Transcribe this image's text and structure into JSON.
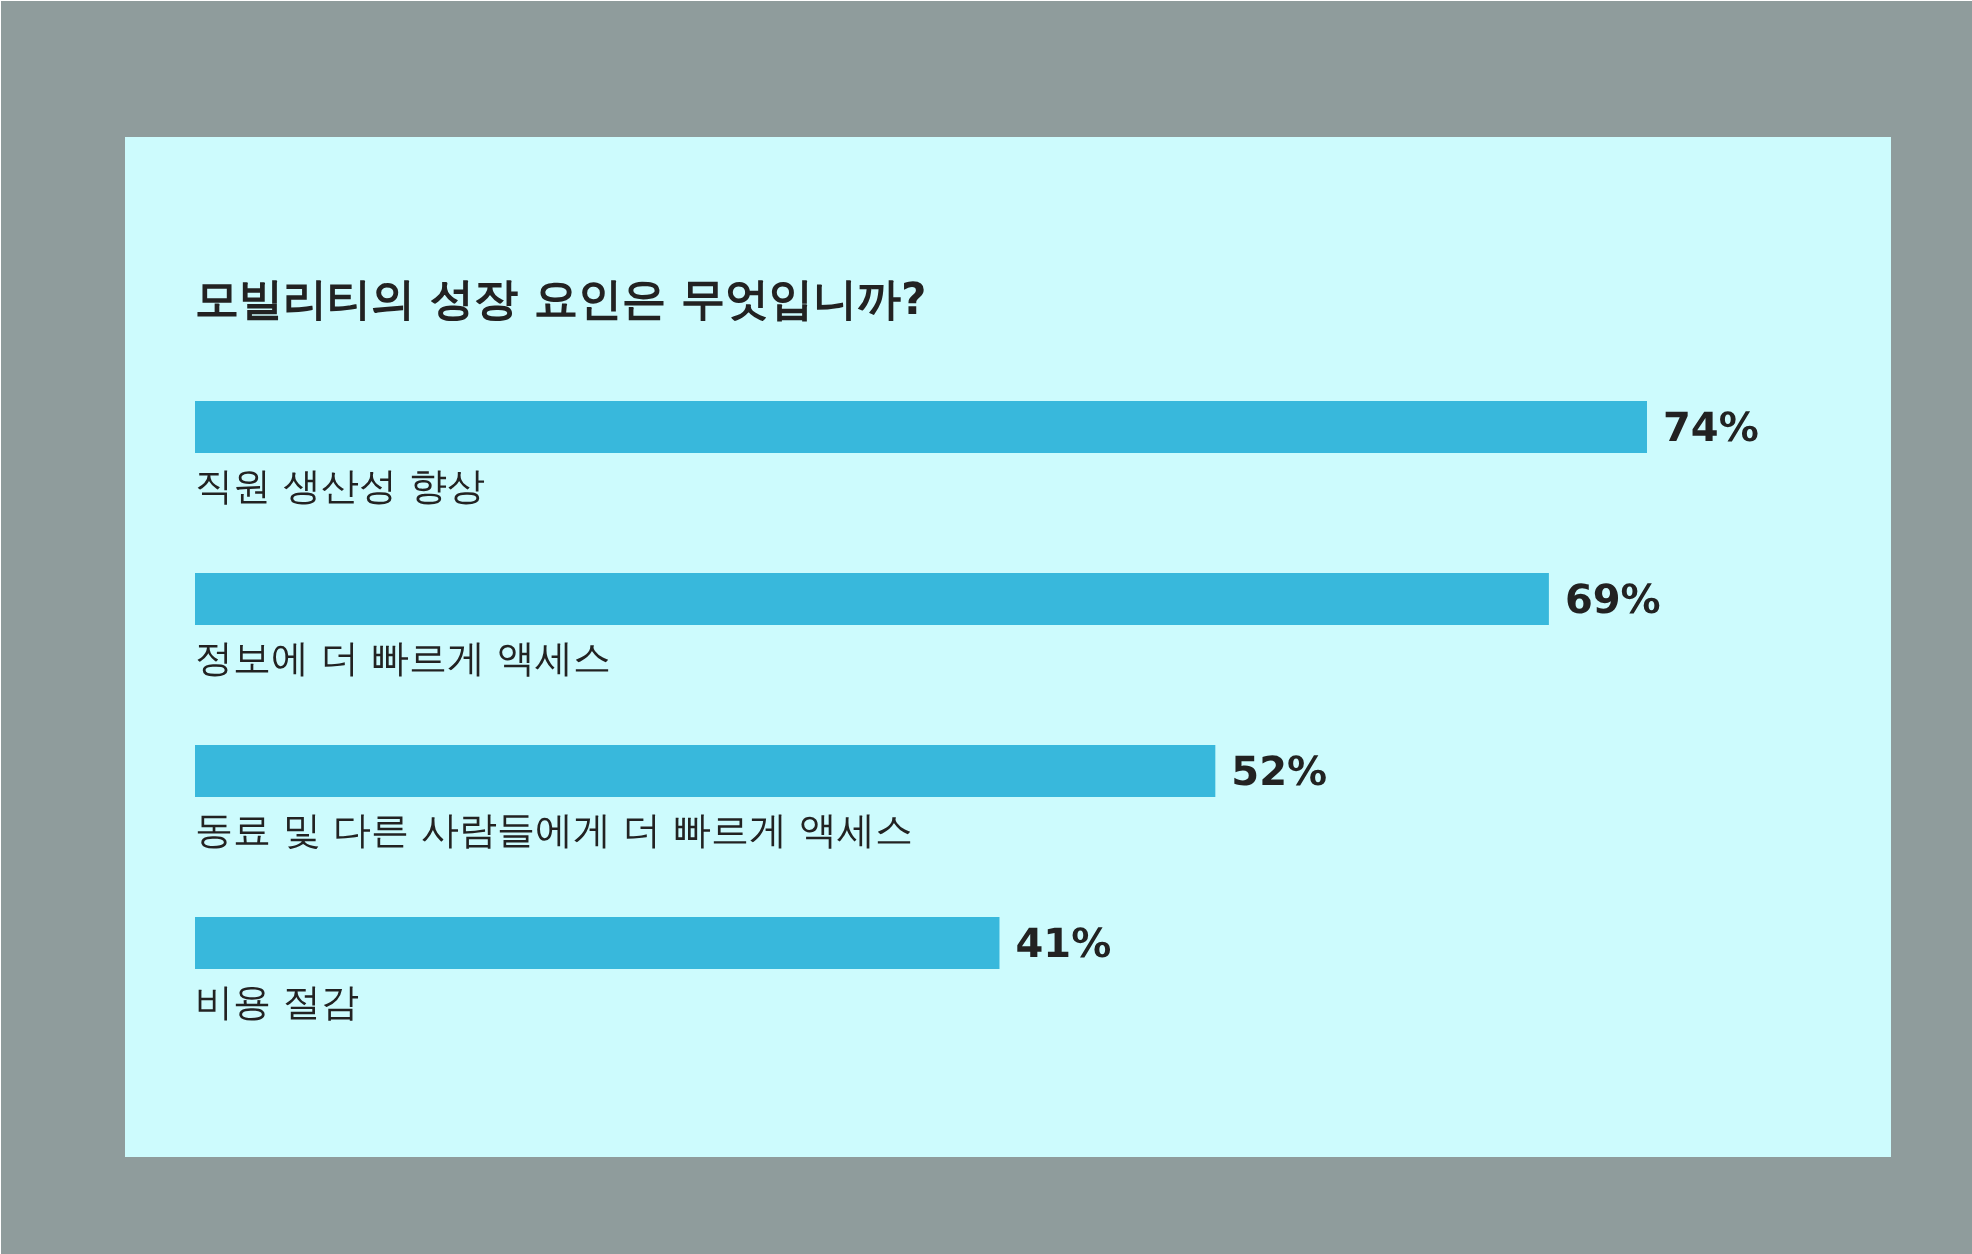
{
  "chart_data": {
    "type": "bar",
    "orientation": "horizontal",
    "title": "모빌리티의 성장 요인은 무엇입니까?",
    "categories": [
      "직원 생산성 향상",
      "정보에 더 빠르게 액세스",
      "동료 및 다른 사람들에게 더 빠르게 액세스",
      "비용 절감"
    ],
    "values": [
      74,
      69,
      52,
      41
    ],
    "value_labels": [
      "74%",
      "69%",
      "52%",
      "41%"
    ],
    "color": "#38b8dc"
  }
}
